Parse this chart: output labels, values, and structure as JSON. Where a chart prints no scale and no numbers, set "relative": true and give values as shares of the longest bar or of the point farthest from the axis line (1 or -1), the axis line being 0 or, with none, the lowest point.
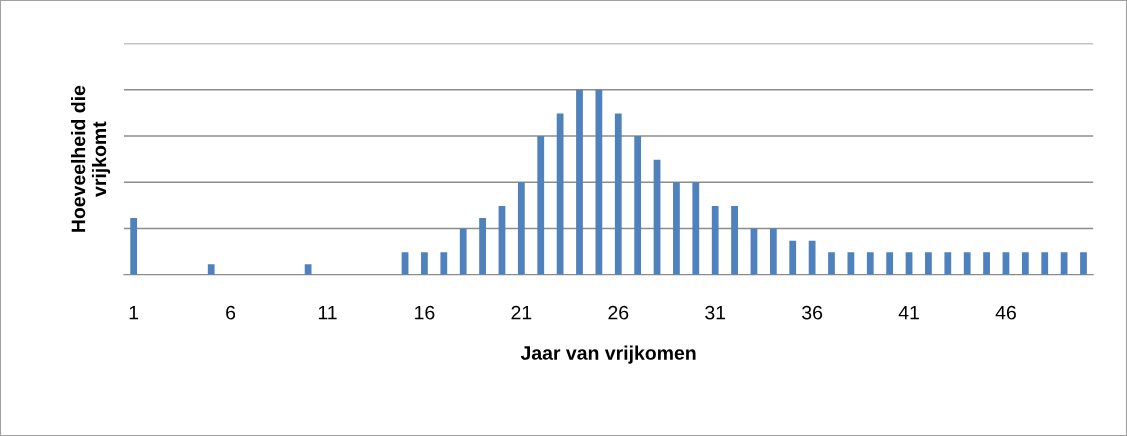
{
  "chart_data": {
    "type": "bar",
    "xlabel": "Jaar van vrijkomen",
    "ylabel": "Hoeveelheid die\nvrijkomt",
    "relative": true,
    "grid": "y",
    "legend": false,
    "categories": [
      "1",
      null,
      null,
      null,
      null,
      "6",
      null,
      null,
      null,
      null,
      "11",
      null,
      null,
      null,
      null,
      "16",
      null,
      null,
      null,
      null,
      "21",
      null,
      null,
      null,
      null,
      "26",
      null,
      null,
      null,
      null,
      "31",
      null,
      null,
      null,
      null,
      "36",
      null,
      null,
      null,
      null,
      "41",
      null,
      null,
      null,
      null,
      "46",
      null,
      null,
      null,
      null
    ],
    "series": [
      {
        "color": "#4f81bd",
        "values": [
          0.306,
          0,
          0,
          0,
          0.056,
          0,
          0,
          0,
          0,
          0.056,
          0,
          0,
          0,
          0,
          0.122,
          0.122,
          0.122,
          0.25,
          0.306,
          0.372,
          0.5,
          0.75,
          0.872,
          1,
          1,
          0.872,
          0.75,
          0.622,
          0.5,
          0.5,
          0.372,
          0.372,
          0.25,
          0.25,
          0.183,
          0.183,
          0.122,
          0.122,
          0.122,
          0.122,
          0.122,
          0.122,
          0.122,
          0.122,
          0.122,
          0.122,
          0.122,
          0.122,
          0.122,
          0.122
        ]
      }
    ]
  }
}
